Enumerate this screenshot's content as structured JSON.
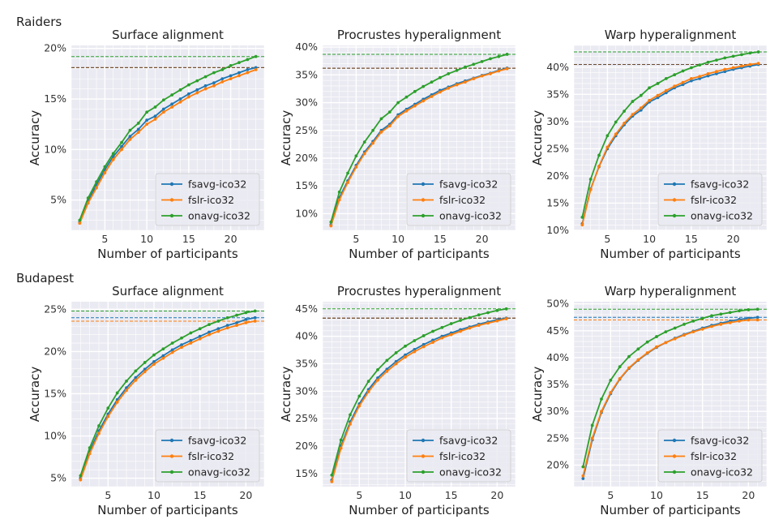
{
  "colors": {
    "fsavg": "#1f77b4",
    "fslr": "#ff7f0e",
    "onavg": "#2ca02c",
    "panel_bg": "#eaeaf2",
    "grid": "#ffffff"
  },
  "row_labels": [
    "Raiders",
    "Budapest"
  ],
  "chart_data": [
    {
      "type": "line",
      "row": 0,
      "col": 0,
      "title": "Surface alignment",
      "xlabel": "Number of participants",
      "ylabel": "Accuracy",
      "xlim": [
        1.0,
        24.0
      ],
      "ylim": [
        2.0,
        20.3
      ],
      "xticks": [
        5,
        10,
        15,
        20
      ],
      "xtick_labels": [
        "5",
        "10",
        "15",
        "20"
      ],
      "yticks": [
        5,
        10,
        15,
        20
      ],
      "ytick_labels": [
        "5%",
        "10%",
        "15%",
        "20%"
      ],
      "grid": true,
      "legend": "lower-right",
      "x": [
        2,
        3,
        4,
        5,
        6,
        7,
        8,
        9,
        10,
        11,
        12,
        13,
        14,
        15,
        16,
        17,
        18,
        19,
        20,
        21,
        22,
        23
      ],
      "series": [
        {
          "name": "fsavg-ico32",
          "color": "#1f77b4",
          "values": [
            2.8,
            4.9,
            6.5,
            8.0,
            9.3,
            10.3,
            11.3,
            12.0,
            12.9,
            13.3,
            14.0,
            14.5,
            15.0,
            15.5,
            15.9,
            16.3,
            16.6,
            17.0,
            17.3,
            17.6,
            17.9,
            18.1
          ],
          "hline": 18.1
        },
        {
          "name": "fslr-ico32",
          "color": "#ff7f0e",
          "values": [
            2.7,
            4.7,
            6.2,
            7.7,
            9.0,
            10.0,
            11.0,
            11.7,
            12.5,
            13.0,
            13.7,
            14.2,
            14.7,
            15.2,
            15.6,
            16.0,
            16.3,
            16.7,
            17.0,
            17.3,
            17.6,
            17.9
          ],
          "hline": 18.1
        },
        {
          "name": "onavg-ico32",
          "color": "#2ca02c",
          "values": [
            3.0,
            5.2,
            6.8,
            8.3,
            9.6,
            10.7,
            11.9,
            12.6,
            13.7,
            14.2,
            14.9,
            15.4,
            15.9,
            16.4,
            16.8,
            17.2,
            17.6,
            17.9,
            18.3,
            18.6,
            18.9,
            19.2
          ],
          "hline": 19.2
        }
      ]
    },
    {
      "type": "line",
      "row": 0,
      "col": 1,
      "title": "Procrustes hyperalignment",
      "xlabel": "Number of participants",
      "ylabel": "Accuracy",
      "xlim": [
        1.0,
        24.0
      ],
      "ylim": [
        7.0,
        40.3
      ],
      "xticks": [
        5,
        10,
        15,
        20
      ],
      "xtick_labels": [
        "5",
        "10",
        "15",
        "20"
      ],
      "yticks": [
        10,
        15,
        20,
        25,
        30,
        35,
        40
      ],
      "ytick_labels": [
        "10%",
        "15%",
        "20%",
        "25%",
        "30%",
        "35%",
        "40%"
      ],
      "grid": true,
      "legend": "lower-right",
      "x": [
        2,
        3,
        4,
        5,
        6,
        7,
        8,
        9,
        10,
        11,
        12,
        13,
        14,
        15,
        16,
        17,
        18,
        19,
        20,
        21,
        22,
        23
      ],
      "series": [
        {
          "name": "fsavg-ico32",
          "color": "#1f77b4",
          "values": [
            8.0,
            12.9,
            15.9,
            18.7,
            21.1,
            23.0,
            25.0,
            26.1,
            27.8,
            28.8,
            29.7,
            30.6,
            31.4,
            32.2,
            32.8,
            33.4,
            33.9,
            34.4,
            34.9,
            35.3,
            35.8,
            36.2
          ],
          "hline": 36.2
        },
        {
          "name": "fslr-ico32",
          "color": "#ff7f0e",
          "values": [
            7.8,
            12.5,
            15.6,
            18.4,
            20.8,
            22.7,
            24.7,
            25.8,
            27.5,
            28.5,
            29.4,
            30.3,
            31.1,
            31.9,
            32.6,
            33.2,
            33.7,
            34.3,
            34.8,
            35.2,
            35.7,
            36.1
          ],
          "hline": 36.2
        },
        {
          "name": "onavg-ico32",
          "color": "#2ca02c",
          "values": [
            8.5,
            13.9,
            17.3,
            20.4,
            22.9,
            25.0,
            27.1,
            28.3,
            30.0,
            31.0,
            32.0,
            32.9,
            33.7,
            34.5,
            35.2,
            35.8,
            36.4,
            36.9,
            37.4,
            37.9,
            38.3,
            38.7
          ],
          "hline": 38.7
        }
      ]
    },
    {
      "type": "line",
      "row": 0,
      "col": 2,
      "title": "Warp hyperalignment",
      "xlabel": "Number of participants",
      "ylabel": "Accuracy",
      "xlim": [
        1.0,
        24.0
      ],
      "ylim": [
        10.0,
        44.0
      ],
      "xticks": [
        5,
        10,
        15,
        20
      ],
      "xtick_labels": [
        "5",
        "10",
        "15",
        "20"
      ],
      "yticks": [
        10,
        15,
        20,
        25,
        30,
        35,
        40
      ],
      "ytick_labels": [
        "10%",
        "15%",
        "20%",
        "25%",
        "30%",
        "35%",
        "40%"
      ],
      "grid": true,
      "legend": "lower-right",
      "x": [
        2,
        3,
        4,
        5,
        6,
        7,
        8,
        9,
        10,
        11,
        12,
        13,
        14,
        15,
        16,
        17,
        18,
        19,
        20,
        21,
        22,
        23
      ],
      "series": [
        {
          "name": "fsavg-ico32",
          "color": "#1f77b4",
          "values": [
            11.2,
            17.6,
            21.7,
            25.0,
            27.4,
            29.4,
            31.0,
            32.1,
            33.6,
            34.4,
            35.3,
            36.2,
            36.8,
            37.5,
            37.9,
            38.4,
            38.8,
            39.2,
            39.6,
            39.9,
            40.2,
            40.5
          ],
          "hline": 40.5
        },
        {
          "name": "fslr-ico32",
          "color": "#ff7f0e",
          "values": [
            11.0,
            17.5,
            21.8,
            25.3,
            27.7,
            29.7,
            31.3,
            32.5,
            33.9,
            34.8,
            35.7,
            36.5,
            37.2,
            37.9,
            38.3,
            38.8,
            39.2,
            39.6,
            39.9,
            40.2,
            40.5,
            40.7
          ],
          "hline": 40.5
        },
        {
          "name": "onavg-ico32",
          "color": "#2ca02c",
          "values": [
            12.4,
            19.4,
            23.8,
            27.4,
            29.9,
            31.9,
            33.7,
            34.8,
            36.2,
            37.0,
            37.9,
            38.6,
            39.3,
            39.9,
            40.4,
            40.9,
            41.3,
            41.7,
            42.0,
            42.3,
            42.6,
            42.8
          ],
          "hline": 42.8
        }
      ]
    },
    {
      "type": "line",
      "row": 1,
      "col": 0,
      "title": "Surface alignment",
      "xlabel": "Number of participants",
      "ylabel": "Accuracy",
      "xlim": [
        1.0,
        22.0
      ],
      "ylim": [
        4.0,
        25.9
      ],
      "xticks": [
        5,
        10,
        15,
        20
      ],
      "xtick_labels": [
        "5",
        "10",
        "15",
        "20"
      ],
      "yticks": [
        5,
        10,
        15,
        20,
        25
      ],
      "ytick_labels": [
        "5%",
        "10%",
        "15%",
        "20%",
        "25%"
      ],
      "grid": true,
      "legend": "lower-right",
      "x": [
        2,
        3,
        4,
        5,
        6,
        7,
        8,
        9,
        10,
        11,
        12,
        13,
        14,
        15,
        16,
        17,
        18,
        19,
        20,
        21
      ],
      "series": [
        {
          "name": "fsavg-ico32",
          "color": "#1f77b4",
          "values": [
            5.0,
            8.2,
            10.6,
            12.6,
            14.3,
            15.7,
            16.9,
            17.9,
            18.8,
            19.5,
            20.2,
            20.8,
            21.3,
            21.8,
            22.3,
            22.7,
            23.1,
            23.4,
            23.8,
            24.0
          ],
          "hline": 24.0
        },
        {
          "name": "fslr-ico32",
          "color": "#ff7f0e",
          "values": [
            4.8,
            7.9,
            10.3,
            12.3,
            14.0,
            15.4,
            16.6,
            17.6,
            18.5,
            19.2,
            19.9,
            20.5,
            21.0,
            21.5,
            22.0,
            22.4,
            22.8,
            23.1,
            23.4,
            23.6
          ],
          "hline": 23.6
        },
        {
          "name": "onavg-ico32",
          "color": "#2ca02c",
          "values": [
            5.3,
            8.6,
            11.2,
            13.3,
            15.1,
            16.5,
            17.7,
            18.7,
            19.6,
            20.3,
            21.0,
            21.6,
            22.2,
            22.7,
            23.2,
            23.6,
            24.0,
            24.3,
            24.6,
            24.8
          ],
          "hline": 24.8
        }
      ]
    },
    {
      "type": "line",
      "row": 1,
      "col": 1,
      "title": "Procrustes hyperalignment",
      "xlabel": "Number of participants",
      "ylabel": "Accuracy",
      "xlim": [
        1.0,
        22.0
      ],
      "ylim": [
        12.6,
        46.3
      ],
      "xticks": [
        5,
        10,
        15,
        20
      ],
      "xtick_labels": [
        "5",
        "10",
        "15",
        "20"
      ],
      "yticks": [
        15,
        20,
        25,
        30,
        35,
        40,
        45
      ],
      "ytick_labels": [
        "15%",
        "20%",
        "25%",
        "30%",
        "35%",
        "40%",
        "45%"
      ],
      "grid": true,
      "legend": "lower-right",
      "x": [
        2,
        3,
        4,
        5,
        6,
        7,
        8,
        9,
        10,
        11,
        12,
        13,
        14,
        15,
        16,
        17,
        18,
        19,
        20,
        21
      ],
      "series": [
        {
          "name": "fsavg-ico32",
          "color": "#1f77b4",
          "values": [
            13.8,
            20.0,
            24.4,
            27.7,
            30.3,
            32.4,
            34.0,
            35.4,
            36.6,
            37.6,
            38.5,
            39.3,
            40.0,
            40.6,
            41.2,
            41.7,
            42.2,
            42.6,
            43.0,
            43.3
          ],
          "hline": 43.3
        },
        {
          "name": "fslr-ico32",
          "color": "#ff7f0e",
          "values": [
            13.5,
            19.6,
            24.0,
            27.3,
            29.9,
            32.0,
            33.6,
            35.0,
            36.2,
            37.2,
            38.1,
            38.9,
            39.7,
            40.3,
            40.9,
            41.5,
            42.0,
            42.4,
            42.8,
            43.2
          ],
          "hline": 43.3
        },
        {
          "name": "onavg-ico32",
          "color": "#2ca02c",
          "values": [
            14.7,
            21.1,
            25.7,
            29.1,
            31.8,
            33.9,
            35.6,
            37.0,
            38.2,
            39.2,
            40.1,
            40.9,
            41.6,
            42.3,
            42.9,
            43.4,
            43.9,
            44.3,
            44.7,
            45.0
          ],
          "hline": 45.0
        }
      ]
    },
    {
      "type": "line",
      "row": 1,
      "col": 2,
      "title": "Warp hyperalignment",
      "xlabel": "Number of participants",
      "ylabel": "Accuracy",
      "xlim": [
        1.0,
        22.0
      ],
      "ylim": [
        16.0,
        50.4
      ],
      "xticks": [
        5,
        10,
        15,
        20
      ],
      "xtick_labels": [
        "5",
        "10",
        "15",
        "20"
      ],
      "yticks": [
        20,
        25,
        30,
        35,
        40,
        45,
        50
      ],
      "ytick_labels": [
        "20%",
        "25%",
        "30%",
        "35%",
        "40%",
        "45%",
        "50%"
      ],
      "grid": true,
      "legend": "lower-right",
      "x": [
        2,
        3,
        4,
        5,
        6,
        7,
        8,
        9,
        10,
        11,
        12,
        13,
        14,
        15,
        16,
        17,
        18,
        19,
        20,
        21
      ],
      "series": [
        {
          "name": "fsavg-ico32",
          "color": "#1f77b4",
          "values": [
            17.5,
            24.7,
            29.8,
            33.3,
            36.0,
            38.0,
            39.5,
            40.8,
            41.9,
            42.8,
            43.6,
            44.3,
            44.9,
            45.5,
            46.0,
            46.4,
            46.8,
            47.1,
            47.3,
            47.5
          ],
          "hline": 47.5
        },
        {
          "name": "fslr-ico32",
          "color": "#ff7f0e",
          "values": [
            18.0,
            25.0,
            30.0,
            33.5,
            36.1,
            38.1,
            39.6,
            40.9,
            42.0,
            42.8,
            43.5,
            44.2,
            44.8,
            45.3,
            45.8,
            46.2,
            46.5,
            46.8,
            47.0,
            47.0
          ],
          "hline": 47.0
        },
        {
          "name": "onavg-ico32",
          "color": "#2ca02c",
          "values": [
            19.7,
            27.4,
            32.3,
            35.8,
            38.3,
            40.2,
            41.6,
            42.9,
            43.9,
            44.8,
            45.5,
            46.2,
            46.8,
            47.3,
            47.8,
            48.1,
            48.4,
            48.7,
            48.9,
            49.0
          ],
          "hline": 49.0
        }
      ]
    }
  ]
}
